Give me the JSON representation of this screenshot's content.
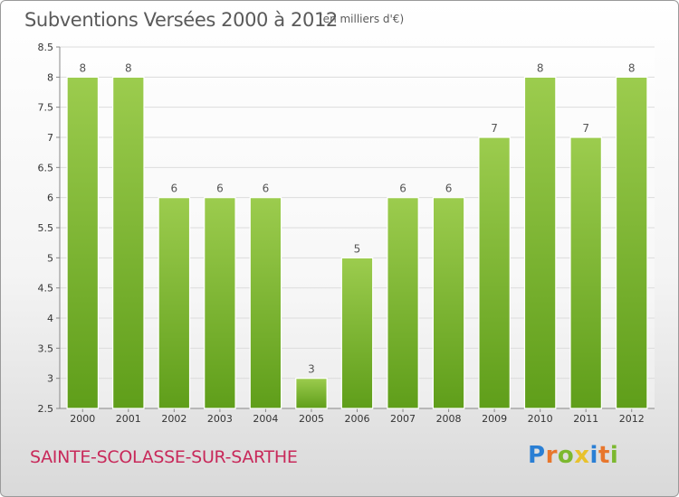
{
  "chart_data": {
    "type": "bar",
    "title": "Subventions Versées 2000 à 2012",
    "subtitle": "(en milliers d'€)",
    "categories": [
      "2000",
      "2001",
      "2002",
      "2003",
      "2004",
      "2005",
      "2006",
      "2007",
      "2008",
      "2009",
      "2010",
      "2011",
      "2012"
    ],
    "values": [
      8,
      8,
      6,
      6,
      6,
      3,
      5,
      6,
      6,
      7,
      8,
      7,
      8
    ],
    "data_labels": [
      "8",
      "8",
      "6",
      "6",
      "6",
      "3",
      "5",
      "6",
      "6",
      "7",
      "8",
      "7",
      "8"
    ],
    "ylim": [
      2.5,
      8.5
    ],
    "yticks": [
      2.5,
      3,
      3.5,
      4,
      4.5,
      5,
      5.5,
      6,
      6.5,
      7,
      7.5,
      8,
      8.5
    ],
    "ytick_labels": [
      "2.5",
      "3",
      "3.5",
      "4",
      "4.5",
      "5",
      "5.5",
      "6",
      "6.5",
      "7",
      "7.5",
      "8",
      "8.5"
    ],
    "grid": true,
    "bar_color": "#7cb82f",
    "bar_color_light": "#9ccc4e",
    "bar_color_dark": "#5f9e1a"
  },
  "footer": {
    "place_name": "SAINTE-SCOLASSE-SUR-SARTHE",
    "brand_letters": [
      {
        "char": "P",
        "color": "#2a7fd4"
      },
      {
        "char": "r",
        "color": "#e8762c"
      },
      {
        "char": "o",
        "color": "#7cb82f"
      },
      {
        "char": "x",
        "color": "#e8c22c"
      },
      {
        "char": "i",
        "color": "#2a7fd4"
      },
      {
        "char": "t",
        "color": "#e8762c"
      },
      {
        "char": "i",
        "color": "#7cb82f"
      }
    ]
  }
}
